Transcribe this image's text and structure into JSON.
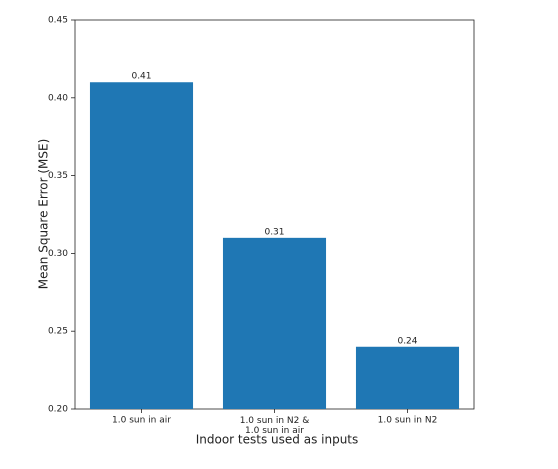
{
  "chart_data": {
    "type": "bar",
    "categories": [
      "1.0 sun in air",
      "1.0 sun in N2 &\n1.0 sun in air",
      "1.0 sun in N2"
    ],
    "values": [
      0.41,
      0.31,
      0.24
    ],
    "color": "#1f77b4",
    "xlabel": "Indoor tests used as inputs",
    "ylabel": "Mean Square Error (MSE)",
    "ylim": [
      0.2,
      0.45
    ],
    "yticks": [
      {
        "value": 0.2,
        "label": "0.20"
      },
      0.25,
      {
        "value": 0.3,
        "label": "0.30"
      },
      0.35,
      {
        "value": 0.4,
        "label": "0.40"
      },
      0.45
    ],
    "grid": false
  }
}
